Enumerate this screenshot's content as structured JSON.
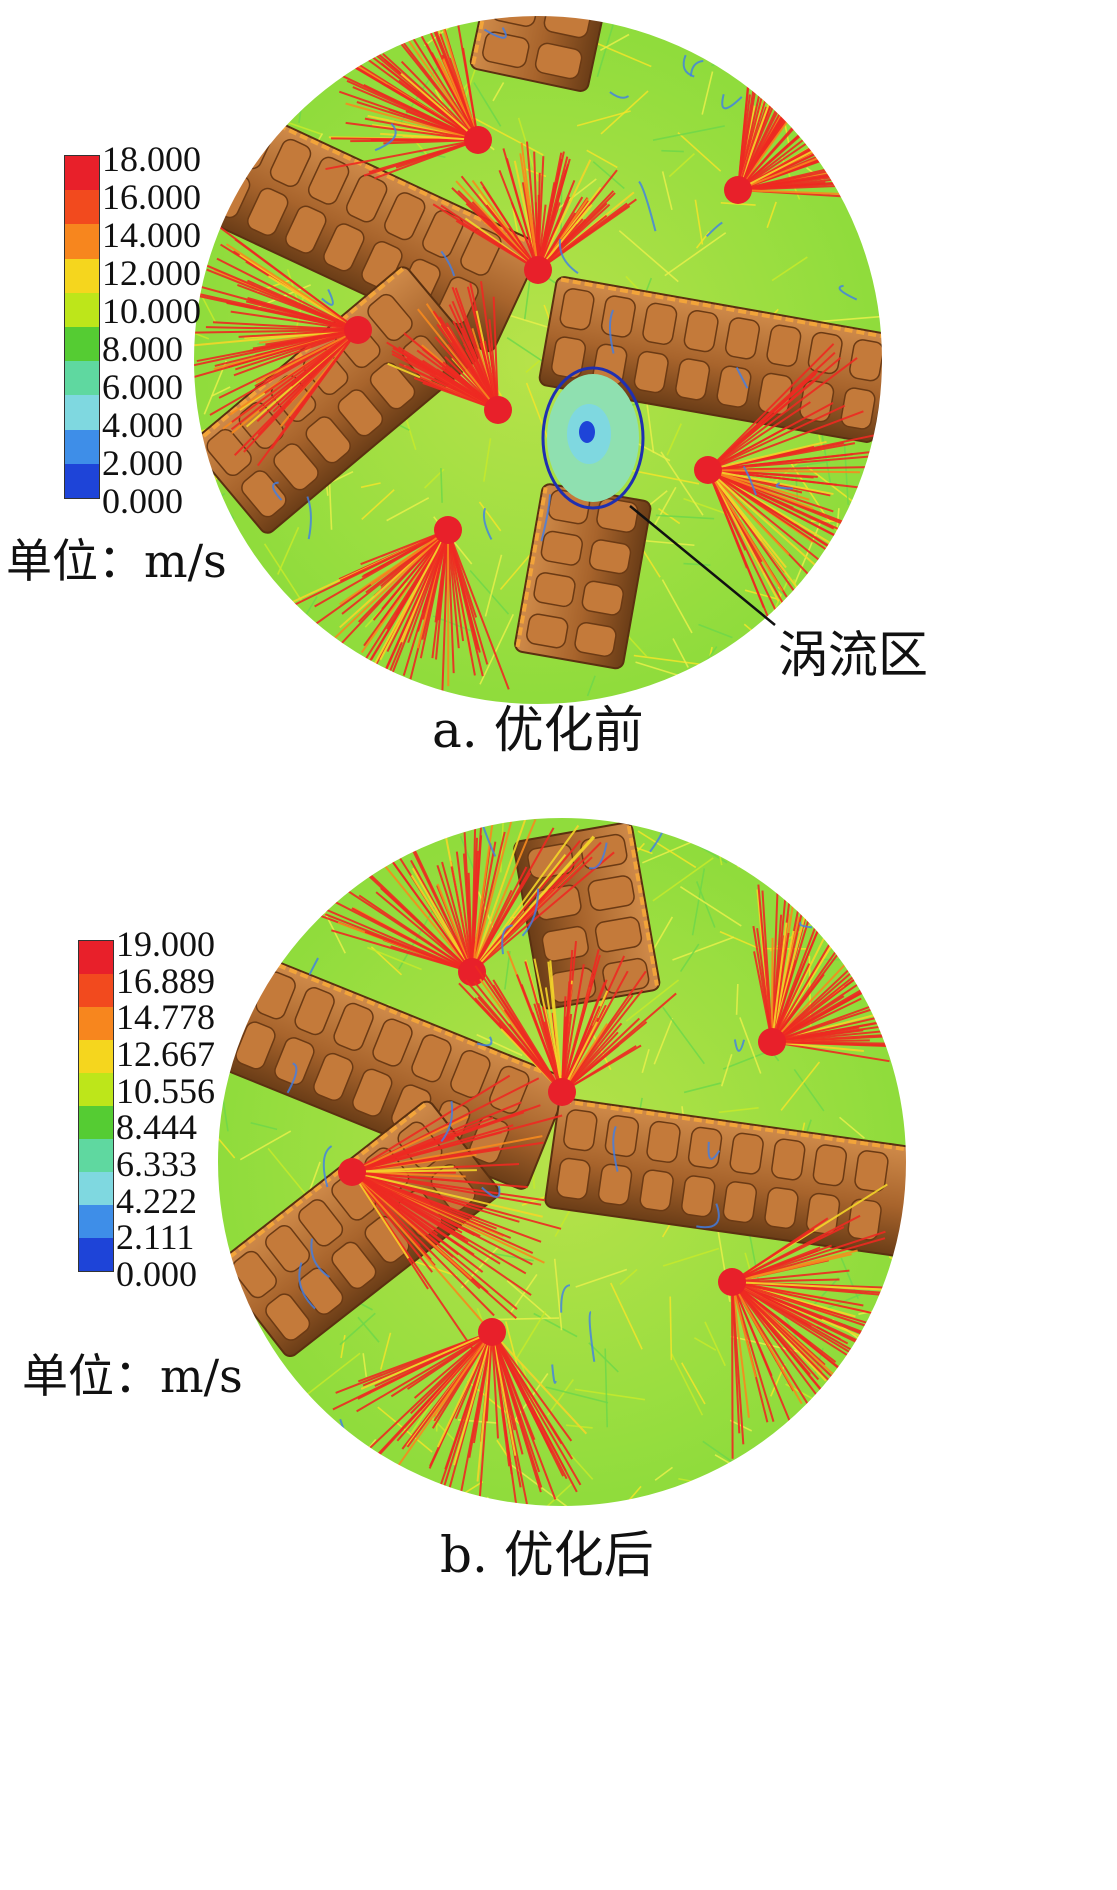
{
  "panels": [
    {
      "caption": "a. 优化前",
      "unit": "单位：m/s",
      "legend_ticks": [
        "18.000",
        "16.000",
        "14.000",
        "12.000",
        "10.000",
        "8.000",
        "6.000",
        "4.000",
        "2.000",
        "0.000"
      ],
      "legend_colors": [
        "#e8202a",
        "#f24a1e",
        "#f7861e",
        "#f5d61e",
        "#bde61a",
        "#55cc33",
        "#5fd8a0",
        "#7fd8e0",
        "#3e8ee8",
        "#1e44d8"
      ],
      "callout": "涡流区"
    },
    {
      "caption": "b. 优化后",
      "unit": "单位：m/s",
      "legend_ticks": [
        "19.000",
        "16.889",
        "14.778",
        "12.667",
        "10.556",
        "8.444",
        "6.333",
        "4.222",
        "2.111",
        "0.000"
      ],
      "legend_colors": [
        "#e8202a",
        "#f24a1e",
        "#f7861e",
        "#f5d61e",
        "#bde61a",
        "#55cc33",
        "#5fd8a0",
        "#7fd8e0",
        "#3e8ee8",
        "#1e44d8"
      ]
    }
  ]
}
